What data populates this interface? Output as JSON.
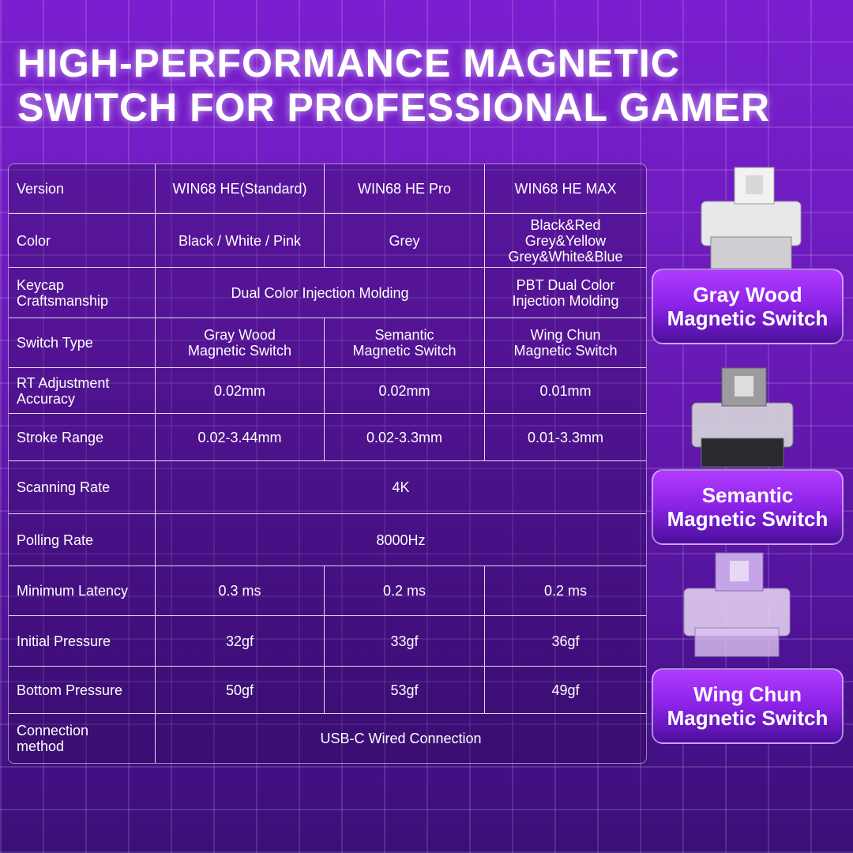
{
  "header": {
    "title": [
      "HIGH-PERFORMANCE MAGNETIC",
      "SWITCH FOR PROFESSIONAL GAMER"
    ]
  },
  "table": {
    "rows": [
      {
        "label": "Version",
        "cells": [
          "WIN68 HE(Standard)",
          "WIN68 HE Pro",
          "WIN68 HE MAX"
        ]
      },
      {
        "label": "Color",
        "cells": [
          "Black / White / Pink",
          "Grey",
          [
            "Black&Red",
            "Grey&Yellow",
            "Grey&White&Blue"
          ]
        ]
      },
      {
        "label": [
          "Keycap",
          "Craftsmanship"
        ],
        "cells": [
          "Dual Color Injection Molding",
          [
            "PBT Dual Color",
            "Injection Molding"
          ]
        ]
      },
      {
        "label": "Switch Type",
        "cells": [
          [
            "Gray Wood",
            "Magnetic Switch"
          ],
          [
            "Semantic",
            "Magnetic Switch"
          ],
          [
            "Wing Chun",
            "Magnetic Switch"
          ]
        ]
      },
      {
        "label": [
          "RT Adjustment",
          "Accuracy"
        ],
        "cells": [
          "0.02mm",
          "0.02mm",
          "0.01mm"
        ]
      },
      {
        "label": "Stroke Range",
        "cells": [
          "0.02-3.44mm",
          "0.02-3.3mm",
          "0.01-3.3mm"
        ]
      },
      {
        "label": "Scanning Rate",
        "cells": [
          "4K"
        ]
      },
      {
        "label": "Polling Rate",
        "cells": [
          "8000Hz"
        ]
      },
      {
        "label": "Minimum Latency",
        "cells": [
          "0.3 ms",
          "0.2 ms",
          "0.2 ms"
        ]
      },
      {
        "label": "Initial Pressure",
        "cells": [
          "32gf",
          "33gf",
          "36gf"
        ]
      },
      {
        "label": "Bottom Pressure",
        "cells": [
          "50gf",
          "53gf",
          "49gf"
        ]
      },
      {
        "label": [
          "Connection",
          "method"
        ],
        "cells": [
          "USB-C Wired Connection"
        ]
      }
    ]
  },
  "switches": [
    {
      "label": [
        "Gray Wood",
        "Magnetic Switch"
      ]
    },
    {
      "label": [
        "Semantic",
        "Magnetic Switch"
      ]
    },
    {
      "label": [
        "Wing Chun",
        "Magnetic Switch"
      ]
    }
  ]
}
